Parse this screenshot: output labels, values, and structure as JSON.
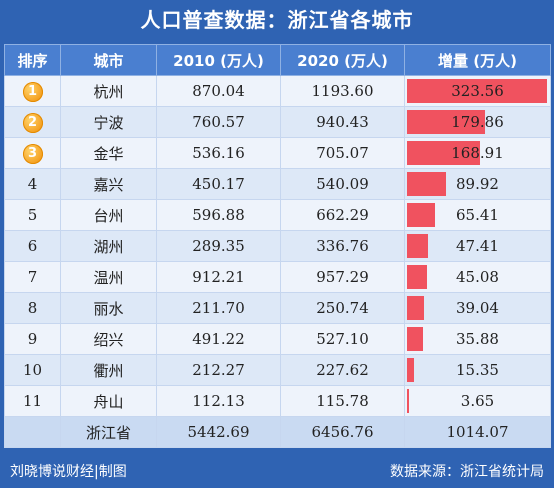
{
  "title": "人口普查数据：浙江省各城市",
  "headers": {
    "rank": "排序",
    "city": "城市",
    "y2010": "2010 (万人)",
    "y2020": "2020 (万人)",
    "inc": "增量 (万人)"
  },
  "rows": [
    {
      "rank": "1",
      "city": "杭州",
      "y2010": "870.04",
      "y2020": "1193.60",
      "inc": "323.56"
    },
    {
      "rank": "2",
      "city": "宁波",
      "y2010": "760.57",
      "y2020": "940.43",
      "inc": "179.86"
    },
    {
      "rank": "3",
      "city": "金华",
      "y2010": "536.16",
      "y2020": "705.07",
      "inc": "168.91"
    },
    {
      "rank": "4",
      "city": "嘉兴",
      "y2010": "450.17",
      "y2020": "540.09",
      "inc": "89.92"
    },
    {
      "rank": "5",
      "city": "台州",
      "y2010": "596.88",
      "y2020": "662.29",
      "inc": "65.41"
    },
    {
      "rank": "6",
      "city": "湖州",
      "y2010": "289.35",
      "y2020": "336.76",
      "inc": "47.41"
    },
    {
      "rank": "7",
      "city": "温州",
      "y2010": "912.21",
      "y2020": "957.29",
      "inc": "45.08"
    },
    {
      "rank": "8",
      "city": "丽水",
      "y2010": "211.70",
      "y2020": "250.74",
      "inc": "39.04"
    },
    {
      "rank": "9",
      "city": "绍兴",
      "y2010": "491.22",
      "y2020": "527.10",
      "inc": "35.88"
    },
    {
      "rank": "10",
      "city": "衢州",
      "y2010": "212.27",
      "y2020": "227.62",
      "inc": "15.35"
    },
    {
      "rank": "11",
      "city": "舟山",
      "y2010": "112.13",
      "y2020": "115.78",
      "inc": "3.65"
    }
  ],
  "total": {
    "city": "浙江省",
    "y2010": "5442.69",
    "y2020": "6456.76",
    "inc": "1014.07"
  },
  "footer": {
    "left": "刘晓博说财经|制图",
    "right": "数据来源：浙江省统计局"
  },
  "colors": {
    "background": "#2f63b3",
    "header": "#4a7fd0",
    "bar": "#f0525f",
    "medal": "#f5a623"
  },
  "chart_data": {
    "type": "table",
    "title": "人口普查数据：浙江省各城市",
    "columns": [
      "排序",
      "城市",
      "2010 (万人)",
      "2020 (万人)",
      "增量 (万人)"
    ],
    "bar_column": "增量 (万人)",
    "bar_max": 323.56,
    "values": [
      323.56,
      179.86,
      168.91,
      89.92,
      65.41,
      47.41,
      45.08,
      39.04,
      35.88,
      15.35,
      3.65
    ]
  }
}
